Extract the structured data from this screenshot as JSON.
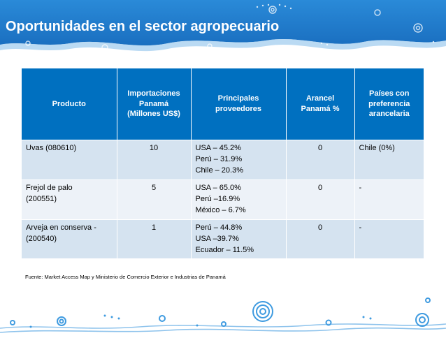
{
  "slide": {
    "title": "Oportunidades en el sector agropecuario"
  },
  "table": {
    "headers": {
      "product": "Producto",
      "imports_line1": "Importaciones",
      "imports_line2": "Panamá",
      "imports_line3": "(Millones US$)",
      "suppliers_line1": "Principales",
      "suppliers_line2": "proveedores",
      "tariff_line1": "Arancel",
      "tariff_line2": "Panamá %",
      "pref_line1": "Países con",
      "pref_line2": "preferencia",
      "pref_line3": "arancelaria"
    },
    "rows": [
      {
        "product_line1": "Uvas (080610)",
        "product_line2": "",
        "imports": "10",
        "supplier1": "USA – 45.2%",
        "supplier2": "Perú – 31.9%",
        "supplier3": "Chile – 20.3%",
        "tariff": "0",
        "preference": "Chile (0%)"
      },
      {
        "product_line1": "Frejol de palo",
        "product_line2": "(200551)",
        "imports": "5",
        "supplier1": "USA – 65.0%",
        "supplier2": "Perú –16.9%",
        "supplier3": "México – 6.7%",
        "tariff": "0",
        "preference": "-"
      },
      {
        "product_line1": "Arveja en conserva  -",
        "product_line2": "(200540)",
        "imports": "1",
        "supplier1": "Perú – 44.8%",
        "supplier2": "USA –39.7%",
        "supplier3": "Ecuador – 11.5%",
        "tariff": "0",
        "preference": "-"
      }
    ]
  },
  "source": "Fuente: Market Access Map  y  Ministerio de Comercio Exterior e Industrias de Panamá",
  "colors": {
    "banner": "#1e7fd0",
    "header": "#0070c0",
    "row_dark": "#d5e3f0",
    "row_light": "#edf2f8"
  }
}
